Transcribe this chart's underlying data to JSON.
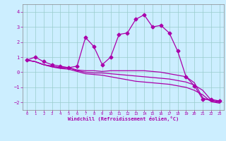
{
  "xlabel": "Windchill (Refroidissement éolien,°C)",
  "x_hours": [
    0,
    1,
    2,
    3,
    4,
    5,
    6,
    7,
    8,
    9,
    10,
    11,
    12,
    13,
    14,
    15,
    16,
    17,
    18,
    19,
    20,
    21,
    22,
    23
  ],
  "line1": [
    0.8,
    1.0,
    0.7,
    0.5,
    0.4,
    0.3,
    0.4,
    2.3,
    1.7,
    0.5,
    1.0,
    2.5,
    2.6,
    3.5,
    3.8,
    3.0,
    3.1,
    2.6,
    1.4,
    -0.3,
    -0.9,
    -1.8,
    -1.8,
    -1.9
  ],
  "line2": [
    0.8,
    0.7,
    0.5,
    0.4,
    0.3,
    0.3,
    0.15,
    0.1,
    0.1,
    0.05,
    0.1,
    0.1,
    0.1,
    0.1,
    0.1,
    0.05,
    0.0,
    -0.1,
    -0.2,
    -0.3,
    -0.7,
    -1.7,
    -1.9,
    -2.0
  ],
  "line3": [
    0.8,
    0.7,
    0.5,
    0.4,
    0.3,
    0.3,
    0.1,
    0.0,
    -0.05,
    -0.05,
    -0.1,
    -0.15,
    -0.2,
    -0.25,
    -0.3,
    -0.35,
    -0.4,
    -0.45,
    -0.55,
    -0.65,
    -0.85,
    -1.2,
    -1.85,
    -1.95
  ],
  "line4": [
    0.8,
    0.7,
    0.5,
    0.35,
    0.25,
    0.2,
    0.05,
    -0.1,
    -0.15,
    -0.2,
    -0.3,
    -0.4,
    -0.5,
    -0.6,
    -0.65,
    -0.7,
    -0.75,
    -0.8,
    -0.9,
    -1.0,
    -1.2,
    -1.5,
    -1.95,
    -2.05
  ],
  "line_color": "#aa00aa",
  "bg_color": "#cceeff",
  "grid_color": "#99cccc",
  "ylim": [
    -2.5,
    4.5
  ],
  "xlim": [
    -0.5,
    23.5
  ],
  "yticks": [
    -2,
    -1,
    0,
    1,
    2,
    3,
    4
  ],
  "xticks": [
    0,
    1,
    2,
    3,
    4,
    5,
    6,
    7,
    8,
    9,
    10,
    11,
    12,
    13,
    14,
    15,
    16,
    17,
    18,
    19,
    20,
    21,
    22,
    23
  ],
  "marker": "D",
  "markersize": 2.5,
  "linewidth": 0.9
}
